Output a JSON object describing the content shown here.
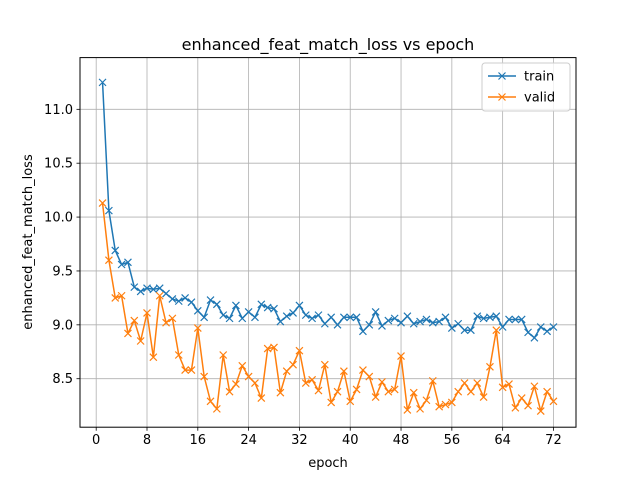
{
  "chart_data": {
    "type": "line",
    "title": "enhanced_feat_match_loss vs epoch",
    "xlabel": "epoch",
    "ylabel": "enhanced_feat_match_loss",
    "xlim": [
      -2.55,
      75.55
    ],
    "ylim": [
      8.05,
      11.48
    ],
    "xticks": [
      0,
      8,
      16,
      24,
      32,
      40,
      48,
      56,
      64,
      72
    ],
    "yticks": [
      8.5,
      9.0,
      9.5,
      10.0,
      10.5,
      11.0
    ],
    "xtick_labels": [
      "0",
      "8",
      "16",
      "24",
      "32",
      "40",
      "48",
      "56",
      "64",
      "72"
    ],
    "ytick_labels": [
      "8.5",
      "9.0",
      "9.5",
      "10.0",
      "10.5",
      "11.0"
    ],
    "grid": true,
    "legend_position": "top-right",
    "x": [
      1,
      2,
      3,
      4,
      5,
      6,
      7,
      8,
      9,
      10,
      11,
      12,
      13,
      14,
      15,
      16,
      17,
      18,
      19,
      20,
      21,
      22,
      23,
      24,
      25,
      26,
      27,
      28,
      29,
      30,
      31,
      32,
      33,
      34,
      35,
      36,
      37,
      38,
      39,
      40,
      41,
      42,
      43,
      44,
      45,
      46,
      47,
      48,
      49,
      50,
      51,
      52,
      53,
      54,
      55,
      56,
      57,
      58,
      59,
      60,
      61,
      62,
      63,
      64,
      65,
      66,
      67,
      68,
      69,
      70,
      71,
      72
    ],
    "series": [
      {
        "name": "train",
        "color": "#1f77b4",
        "marker": "x",
        "values": [
          11.25,
          10.06,
          9.69,
          9.56,
          9.58,
          9.35,
          9.31,
          9.34,
          9.33,
          9.34,
          9.29,
          9.24,
          9.22,
          9.25,
          9.21,
          9.13,
          9.07,
          9.23,
          9.19,
          9.09,
          9.06,
          9.18,
          9.06,
          9.12,
          9.07,
          9.19,
          9.16,
          9.15,
          9.03,
          9.08,
          9.11,
          9.18,
          9.09,
          9.06,
          9.09,
          9.01,
          9.07,
          9.0,
          9.07,
          9.07,
          9.07,
          8.94,
          9.0,
          9.12,
          8.99,
          9.04,
          9.06,
          9.02,
          9.08,
          9.01,
          9.03,
          9.05,
          9.02,
          9.03,
          9.07,
          8.97,
          9.01,
          8.95,
          8.95,
          9.08,
          9.06,
          9.07,
          9.08,
          8.98,
          9.05,
          9.05,
          9.05,
          8.93,
          8.88,
          8.98,
          8.94,
          8.98
        ]
      },
      {
        "name": "valid",
        "color": "#ff7f0e",
        "marker": "x",
        "values": [
          10.13,
          9.6,
          9.25,
          9.27,
          8.92,
          9.04,
          8.85,
          9.11,
          8.7,
          9.27,
          9.02,
          9.06,
          8.72,
          8.58,
          8.58,
          8.97,
          8.52,
          8.29,
          8.22,
          8.72,
          8.38,
          8.45,
          8.62,
          8.52,
          8.46,
          8.32,
          8.78,
          8.79,
          8.37,
          8.57,
          8.63,
          8.76,
          8.46,
          8.49,
          8.39,
          8.63,
          8.28,
          8.38,
          8.57,
          8.29,
          8.4,
          8.58,
          8.52,
          8.33,
          8.47,
          8.38,
          8.4,
          8.71,
          8.21,
          8.37,
          8.22,
          8.3,
          8.48,
          8.24,
          8.26,
          8.28,
          8.38,
          8.46,
          8.38,
          8.46,
          8.33,
          8.61,
          8.95,
          8.42,
          8.45,
          8.23,
          8.32,
          8.25,
          8.43,
          8.2,
          8.38,
          8.29
        ]
      }
    ]
  }
}
